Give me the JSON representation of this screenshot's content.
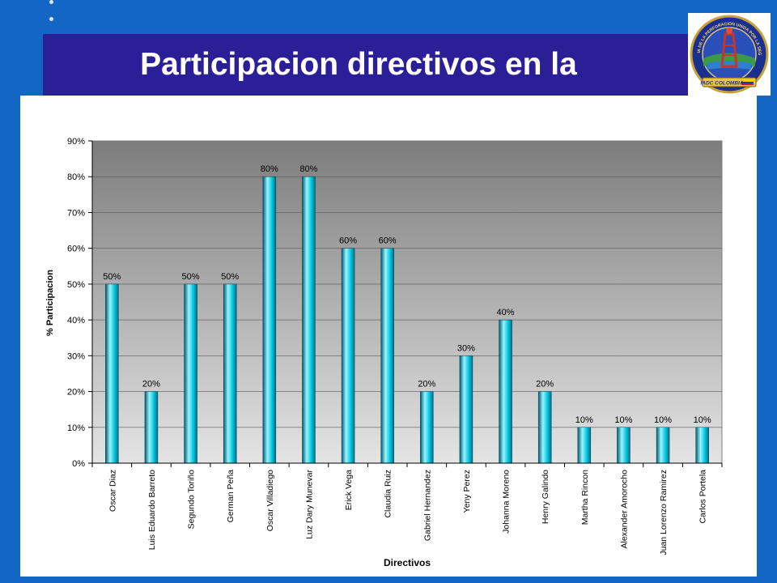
{
  "slide": {
    "title": "Participacion directivos en la"
  },
  "logo": {
    "top_text": "INDUSTRIA DE LA PERFORACION UNIDA POR LA SEGURIDAD",
    "banner_text": "IADC COLOMBIA"
  },
  "chart_data": {
    "type": "bar",
    "categories": [
      "Oscar Diaz",
      "Luis Eduardo Barreto",
      "Segundo Toriño",
      "German Peña",
      "Oscar Villadiego",
      "Luz Dary Munevar",
      "Erick Vega",
      "Claudia Ruiz",
      "Gabriel Hernandez",
      "Yeny Perez",
      "Johanna Moreno",
      "Henry Galindo",
      "Martha Rincon",
      "Alexander Amorocho",
      "Juan Lorenzo Ramirez",
      "Carlos Portela"
    ],
    "values": [
      50,
      20,
      50,
      50,
      80,
      80,
      60,
      60,
      20,
      30,
      40,
      20,
      10,
      10,
      10,
      10
    ],
    "data_labels": [
      "50%",
      "20%",
      "50%",
      "50%",
      "80%",
      "80%",
      "60%",
      "60%",
      "20%",
      "30%",
      "40%",
      "20%",
      "10%",
      "10%",
      "10%",
      "10%"
    ],
    "xlabel": "Directivos",
    "ylabel": "% Participacion",
    "ylim": [
      0,
      90
    ],
    "yticks": [
      "0%",
      "10%",
      "20%",
      "30%",
      "40%",
      "50%",
      "60%",
      "70%",
      "80%",
      "90%"
    ],
    "grid": true,
    "legend": "none",
    "colors": {
      "bar": "#00c8e0",
      "bar_highlight": "#9af4ff",
      "bar_shadow": "#005a6e",
      "plot_top": "#7c7c7c",
      "plot_bottom": "#e4e4e4"
    }
  }
}
